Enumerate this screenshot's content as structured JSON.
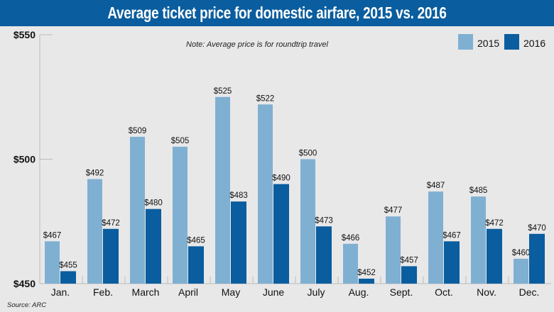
{
  "chart_data": {
    "type": "bar",
    "title": "Average ticket price for domestic airfare, 2015 vs. 2016",
    "note": "Note: Average price is for roundtrip travel",
    "source": "Source: ARC",
    "categories": [
      "Jan.",
      "Feb.",
      "March",
      "April",
      "May",
      "June",
      "July",
      "Aug.",
      "Sept.",
      "Oct.",
      "Nov.",
      "Dec."
    ],
    "series": [
      {
        "name": "2015",
        "color": "#7fb0d2",
        "values": [
          467,
          492,
          509,
          505,
          525,
          522,
          500,
          466,
          477,
          487,
          485,
          460
        ]
      },
      {
        "name": "2016",
        "color": "#0a5d9e",
        "values": [
          455,
          472,
          480,
          465,
          483,
          490,
          473,
          452,
          457,
          467,
          472,
          470
        ]
      }
    ],
    "ylim": [
      450,
      550
    ],
    "yticks": [
      450,
      500,
      550
    ],
    "ytick_labels": [
      "$450",
      "$500",
      "$550"
    ],
    "value_prefix": "$",
    "legend_position": "top-right",
    "grid": false
  }
}
